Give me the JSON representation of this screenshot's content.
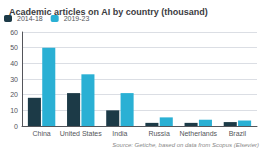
{
  "chart_data": {
    "type": "bar",
    "title": "Academic articles on AI by country (thousand)",
    "categories": [
      "China",
      "United States",
      "India",
      "Russia",
      "Netherlands",
      "Brazil"
    ],
    "series": [
      {
        "name": "2014-18",
        "color": "#1c3a47",
        "values": [
          18,
          21,
          10,
          2,
          2,
          2.5
        ]
      },
      {
        "name": "2019-23",
        "color": "#2ab0d4",
        "values": [
          50,
          33,
          21,
          5.5,
          4,
          3.5
        ]
      }
    ],
    "ylim": [
      0,
      60
    ],
    "yticks": [
      0,
      10,
      20,
      30,
      40,
      50,
      60
    ],
    "grid": true,
    "legend": "upper left",
    "annotations": [
      "Source: Getiche, based on data from Scopus (Elsevier)"
    ]
  }
}
